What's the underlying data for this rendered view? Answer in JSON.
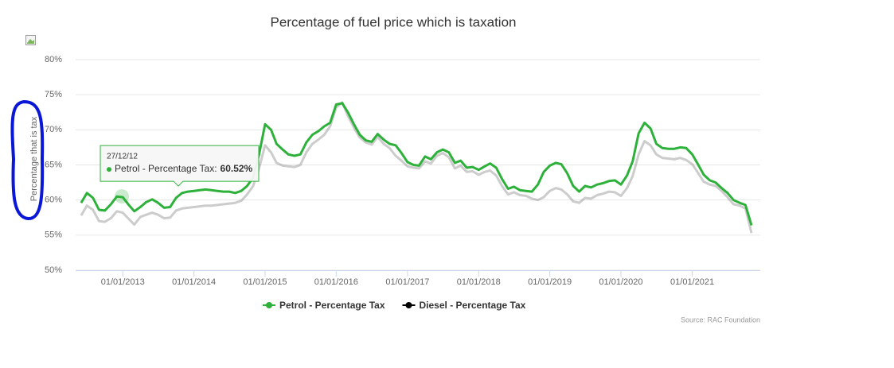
{
  "chart_data": {
    "type": "line",
    "title": "Percentage of fuel price which is taxation",
    "y_label": "Percentage that is tax",
    "source": "Source: RAC Foundation",
    "x": [
      "2012-06-01",
      "2012-07-01",
      "2012-08-01",
      "2012-09-01",
      "2012-10-01",
      "2012-11-01",
      "2012-12-01",
      "2013-01-01",
      "2013-02-01",
      "2013-03-01",
      "2013-04-01",
      "2013-05-01",
      "2013-06-01",
      "2013-07-01",
      "2013-08-01",
      "2013-09-01",
      "2013-10-01",
      "2013-11-01",
      "2013-12-01",
      "2014-01-01",
      "2014-02-01",
      "2014-03-01",
      "2014-04-01",
      "2014-05-01",
      "2014-06-01",
      "2014-07-01",
      "2014-08-01",
      "2014-09-01",
      "2014-10-01",
      "2014-11-01",
      "2014-12-01",
      "2015-01-01",
      "2015-02-01",
      "2015-03-01",
      "2015-04-01",
      "2015-05-01",
      "2015-06-01",
      "2015-07-01",
      "2015-08-01",
      "2015-09-01",
      "2015-10-01",
      "2015-11-01",
      "2015-12-01",
      "2016-01-01",
      "2016-02-01",
      "2016-03-01",
      "2016-04-01",
      "2016-05-01",
      "2016-06-01",
      "2016-07-01",
      "2016-08-01",
      "2016-09-01",
      "2016-10-01",
      "2016-11-01",
      "2016-12-01",
      "2017-01-01",
      "2017-02-01",
      "2017-03-01",
      "2017-04-01",
      "2017-05-01",
      "2017-06-01",
      "2017-07-01",
      "2017-08-01",
      "2017-09-01",
      "2017-10-01",
      "2017-11-01",
      "2017-12-01",
      "2018-01-01",
      "2018-02-01",
      "2018-03-01",
      "2018-04-01",
      "2018-05-01",
      "2018-06-01",
      "2018-07-01",
      "2018-08-01",
      "2018-09-01",
      "2018-10-01",
      "2018-11-01",
      "2018-12-01",
      "2019-01-01",
      "2019-02-01",
      "2019-03-01",
      "2019-04-01",
      "2019-05-01",
      "2019-06-01",
      "2019-07-01",
      "2019-08-01",
      "2019-09-01",
      "2019-10-01",
      "2019-11-01",
      "2019-12-01",
      "2020-01-01",
      "2020-02-01",
      "2020-03-01",
      "2020-04-01",
      "2020-05-01",
      "2020-06-01",
      "2020-07-01",
      "2020-08-01",
      "2020-09-01",
      "2020-10-01",
      "2020-11-01",
      "2020-12-01",
      "2021-01-01",
      "2021-02-01",
      "2021-03-01",
      "2021-04-01",
      "2021-05-01",
      "2021-06-01",
      "2021-07-01",
      "2021-08-01",
      "2021-09-01",
      "2021-10-01",
      "2021-11-01"
    ],
    "series": [
      {
        "name": "Petrol - Percentage Tax",
        "color": "#2eb13b",
        "values": [
          59.6,
          61.0,
          60.3,
          58.6,
          58.5,
          59.4,
          60.5,
          60.4,
          59.3,
          58.4,
          59.0,
          59.7,
          60.1,
          59.6,
          58.9,
          59.0,
          60.3,
          61.0,
          61.2,
          61.3,
          61.4,
          61.5,
          61.4,
          61.3,
          61.2,
          61.2,
          61.0,
          61.3,
          62.0,
          63.2,
          66.5,
          70.8,
          70.0,
          68.0,
          67.2,
          66.5,
          66.3,
          66.5,
          68.2,
          69.3,
          69.8,
          70.5,
          71.0,
          73.6,
          73.8,
          72.5,
          70.8,
          69.3,
          68.5,
          68.3,
          69.4,
          68.6,
          68.0,
          67.8,
          66.7,
          65.4,
          65.0,
          64.9,
          66.2,
          65.8,
          66.8,
          67.2,
          66.8,
          65.3,
          65.6,
          64.6,
          64.7,
          64.3,
          64.8,
          65.2,
          64.6,
          63.0,
          61.6,
          61.9,
          61.4,
          61.3,
          61.2,
          62.2,
          64.0,
          64.9,
          65.3,
          65.1,
          63.8,
          62.0,
          61.2,
          62.0,
          61.8,
          62.2,
          62.4,
          62.7,
          62.8,
          62.2,
          63.5,
          65.5,
          69.5,
          71.0,
          70.2,
          68.0,
          67.4,
          67.3,
          67.3,
          67.5,
          67.4,
          66.5,
          65.0,
          63.6,
          62.8,
          62.5,
          61.7,
          61.0,
          60.0,
          59.6,
          59.3,
          56.4
        ]
      },
      {
        "name": "Diesel - Percentage Tax",
        "color": "#000000",
        "values": [
          57.8,
          59.2,
          58.6,
          57.0,
          56.9,
          57.4,
          58.4,
          58.2,
          57.3,
          56.5,
          57.6,
          57.9,
          58.2,
          57.9,
          57.4,
          57.5,
          58.5,
          58.8,
          58.9,
          59.0,
          59.1,
          59.2,
          59.2,
          59.3,
          59.4,
          59.5,
          59.6,
          59.9,
          60.8,
          62.0,
          64.5,
          67.8,
          66.8,
          65.3,
          64.9,
          64.8,
          64.7,
          65.0,
          66.8,
          68.0,
          68.6,
          69.3,
          70.5,
          73.2,
          73.9,
          72.0,
          70.3,
          68.9,
          68.2,
          67.9,
          69.0,
          68.0,
          67.4,
          66.3,
          65.6,
          64.8,
          64.6,
          64.5,
          65.5,
          65.2,
          66.3,
          66.7,
          66.1,
          64.5,
          64.9,
          64.0,
          64.1,
          63.6,
          64.0,
          64.2,
          63.5,
          62.0,
          60.8,
          61.1,
          60.7,
          60.6,
          60.2,
          60.0,
          60.4,
          61.3,
          61.7,
          61.5,
          60.8,
          59.8,
          59.6,
          60.3,
          60.2,
          60.7,
          60.9,
          61.2,
          61.1,
          60.6,
          61.7,
          63.4,
          66.5,
          68.4,
          67.8,
          66.5,
          66.0,
          65.9,
          65.8,
          66.0,
          65.7,
          65.1,
          63.8,
          62.6,
          62.2,
          62.0,
          61.3,
          60.4,
          59.4,
          59.2,
          58.8,
          55.3
        ]
      }
    ],
    "xlim": [
      "2012-05-04",
      "2021-12-16"
    ],
    "xticks": [
      {
        "value": "2013-01-01",
        "label": "01/01/2013"
      },
      {
        "value": "2014-01-01",
        "label": "01/01/2014"
      },
      {
        "value": "2015-01-01",
        "label": "01/01/2015"
      },
      {
        "value": "2016-01-01",
        "label": "01/01/2016"
      },
      {
        "value": "2017-01-01",
        "label": "01/01/2017"
      },
      {
        "value": "2018-01-01",
        "label": "01/01/2018"
      },
      {
        "value": "2019-01-01",
        "label": "01/01/2019"
      },
      {
        "value": "2020-01-01",
        "label": "01/01/2020"
      },
      {
        "value": "2021-01-01",
        "label": "01/01/2021"
      }
    ],
    "ylim": [
      50,
      80
    ],
    "yticks": [
      {
        "value": 50,
        "label": "50%"
      },
      {
        "value": 55,
        "label": "55%"
      },
      {
        "value": 60,
        "label": "60%"
      },
      {
        "value": 65,
        "label": "65%"
      },
      {
        "value": 70,
        "label": "70%"
      },
      {
        "value": 75,
        "label": "75%"
      },
      {
        "value": 80,
        "label": "80%"
      }
    ],
    "grid": true,
    "tooltip": {
      "date": "27/12/12",
      "x": "2012-12-27",
      "series": "Petrol - Percentage Tax:",
      "value": 60.52,
      "label": "60.52%"
    }
  }
}
